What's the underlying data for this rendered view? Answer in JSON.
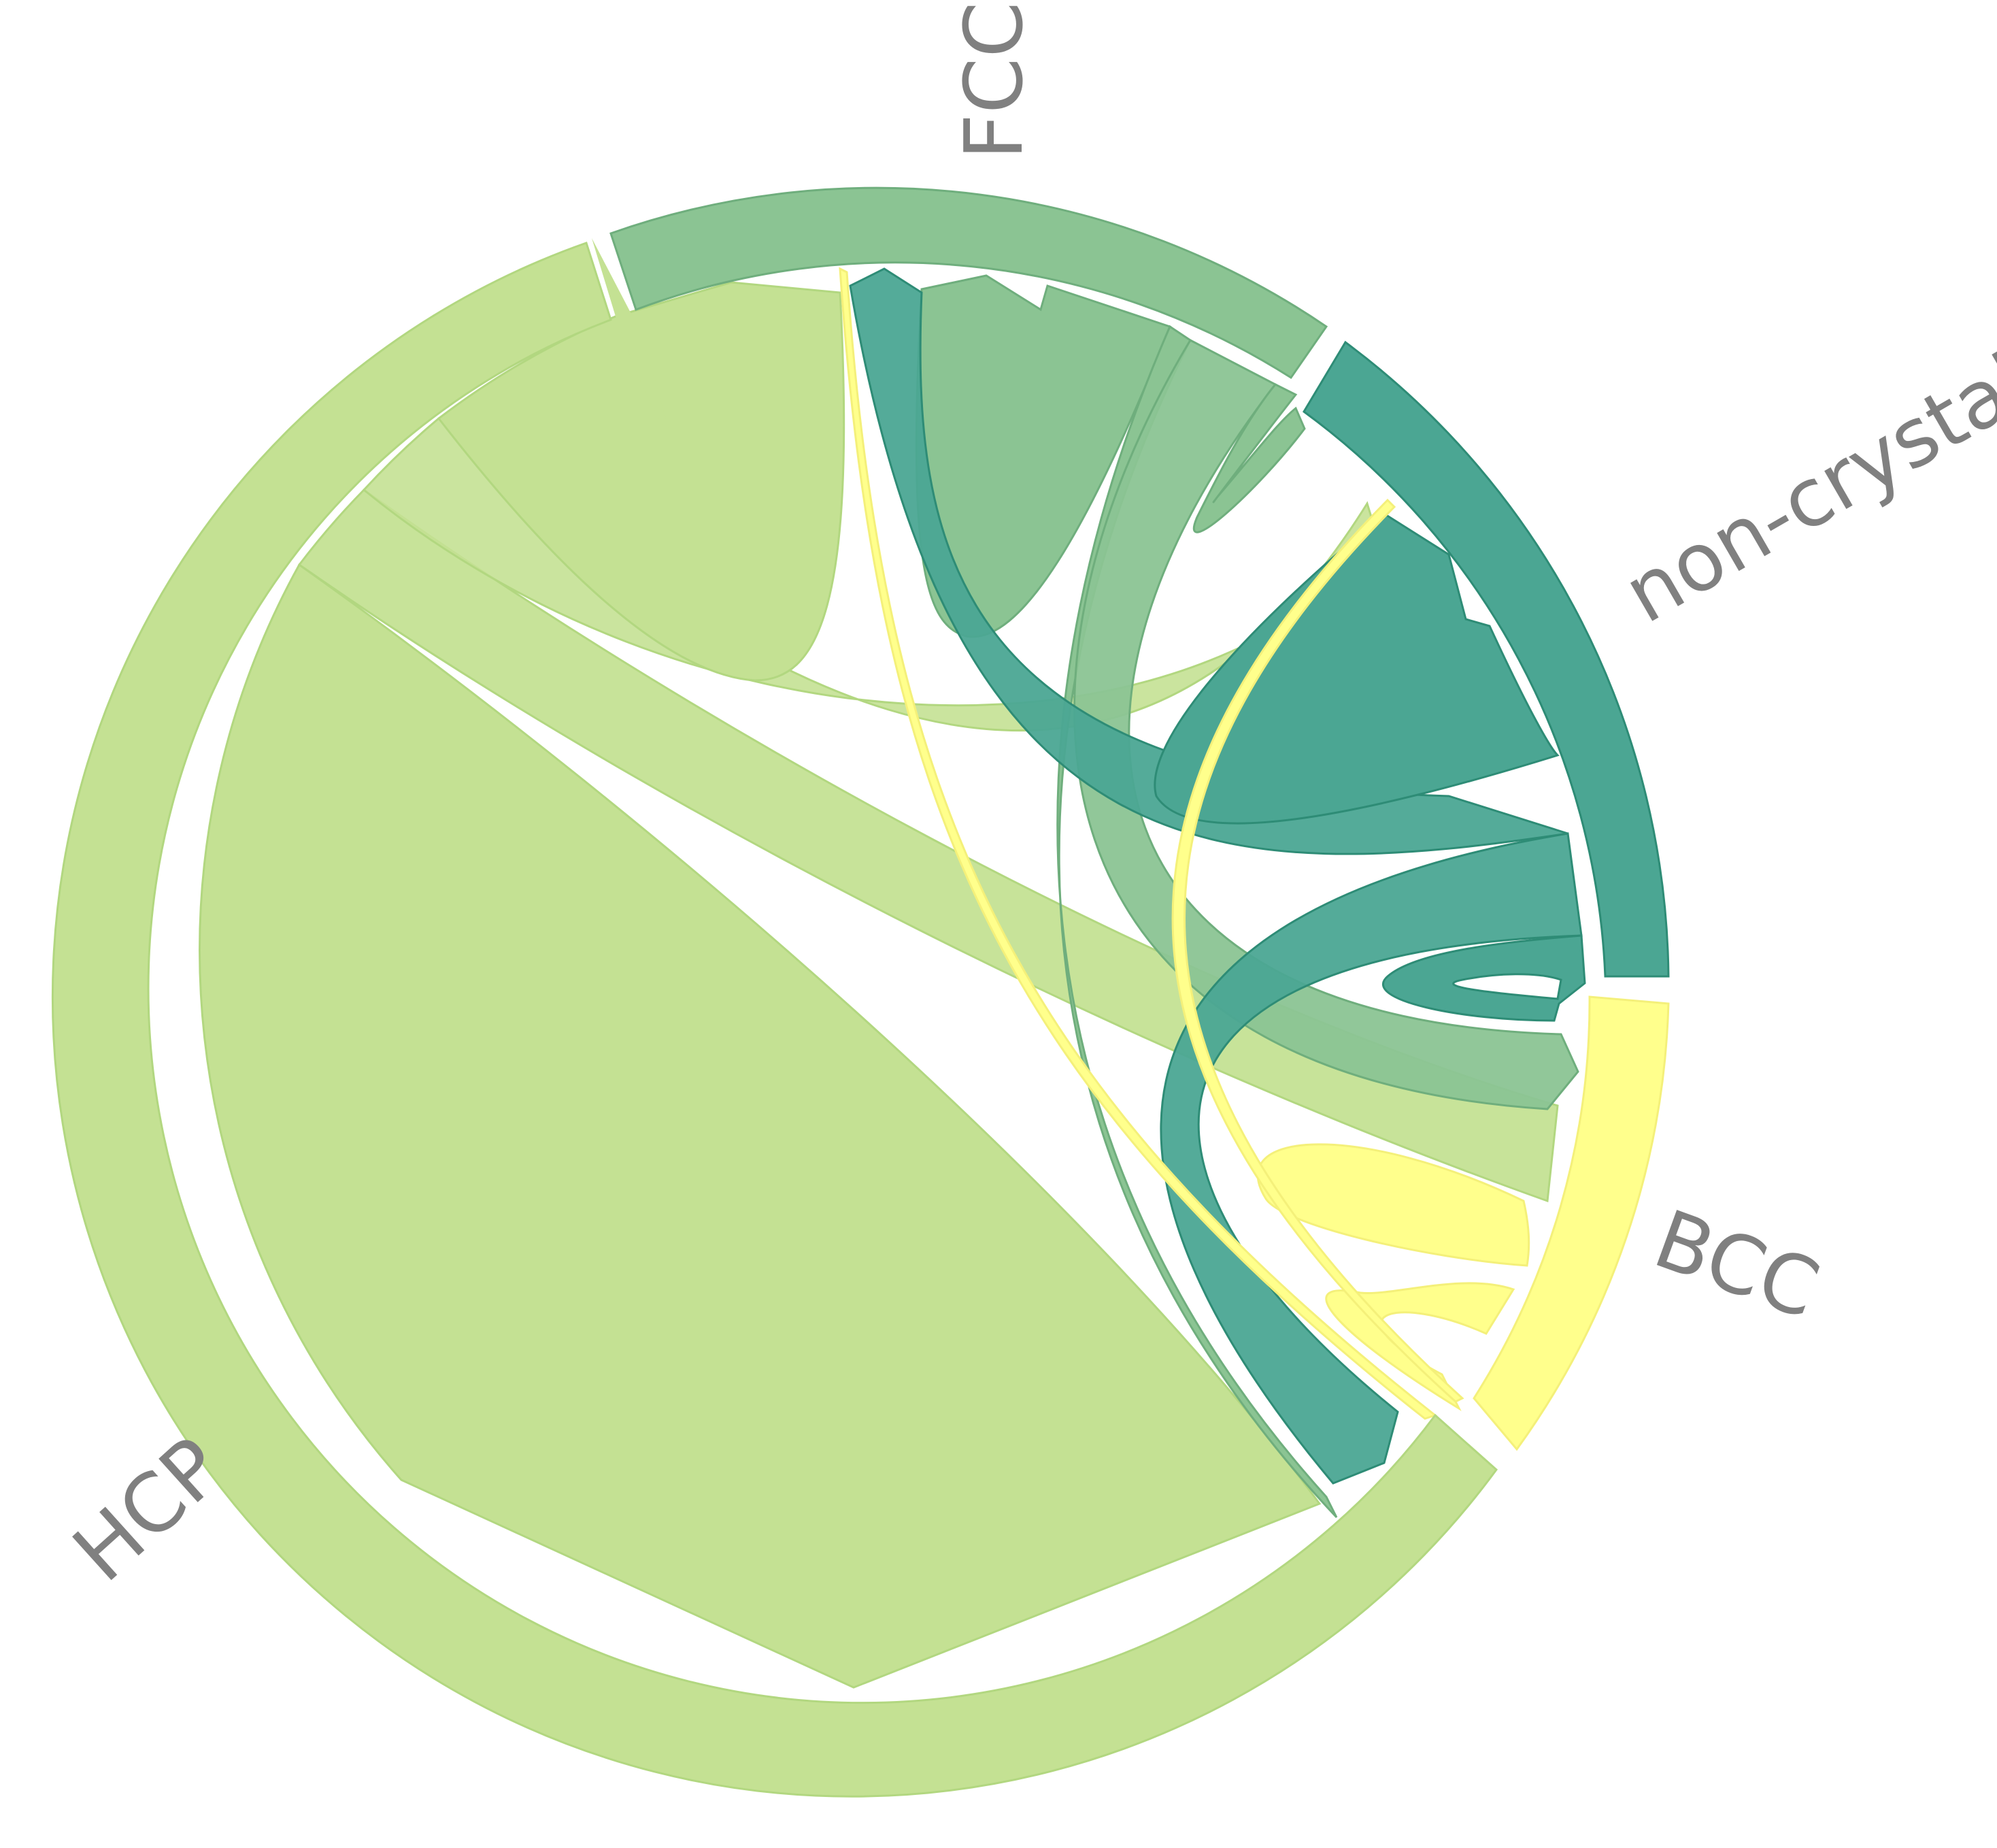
{
  "chart_data": {
    "type": "chord",
    "groups": [
      {
        "id": "fcc",
        "label": "FCC",
        "color": "#8BC493"
      },
      {
        "id": "noncrystal",
        "label": "non-crystal",
        "color": "#4BA693"
      },
      {
        "id": "bcc",
        "label": "BCC",
        "color": "#FFFF8C"
      },
      {
        "id": "hcp",
        "label": "HCP",
        "color": "#C4E193"
      }
    ],
    "flows": [
      {
        "from": "hcp",
        "to": "hcp",
        "value": 1
      },
      {
        "from": "hcp",
        "to": "fcc",
        "value": 1
      },
      {
        "from": "hcp",
        "to": "noncrystal",
        "value": 1
      },
      {
        "from": "hcp",
        "to": "bcc",
        "value": 1
      },
      {
        "from": "fcc",
        "to": "fcc",
        "value": 1
      },
      {
        "from": "fcc",
        "to": "noncrystal",
        "value": 1
      },
      {
        "from": "fcc",
        "to": "bcc",
        "value": 1
      },
      {
        "from": "fcc",
        "to": "hcp",
        "value": 1
      },
      {
        "from": "noncrystal",
        "to": "noncrystal",
        "value": 1
      },
      {
        "from": "noncrystal",
        "to": "fcc",
        "value": 1
      },
      {
        "from": "noncrystal",
        "to": "bcc",
        "value": 1
      },
      {
        "from": "bcc",
        "to": "bcc",
        "value": 1
      },
      {
        "from": "bcc",
        "to": "fcc",
        "value": 1
      },
      {
        "from": "bcc",
        "to": "noncrystal",
        "value": 1
      }
    ]
  }
}
